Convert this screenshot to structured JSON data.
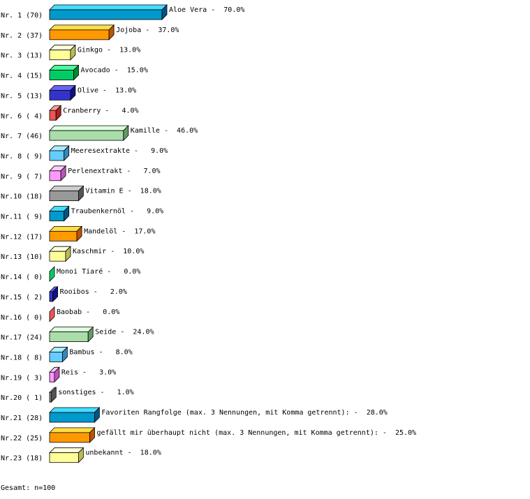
{
  "chart_data": {
    "type": "bar",
    "orientation": "horizontal",
    "style": "3d",
    "row_labels": [
      "Nr. 1 (70)",
      "Nr. 2 (37)",
      "Nr. 3 (13)",
      "Nr. 4 (15)",
      "Nr. 5 (13)",
      "Nr. 6 ( 4)",
      "Nr. 7 (46)",
      "Nr. 8 ( 9)",
      "Nr. 9 ( 7)",
      "Nr.10 (18)",
      "Nr.11 ( 9)",
      "Nr.12 (17)",
      "Nr.13 (10)",
      "Nr.14 ( 0)",
      "Nr.15 ( 2)",
      "Nr.16 ( 0)",
      "Nr.17 (24)",
      "Nr.18 ( 8)",
      "Nr.19 ( 3)",
      "Nr.20 ( 1)",
      "Nr.21 (28)",
      "Nr.22 (25)",
      "Nr.23 (18)"
    ],
    "categories": [
      "Aloe Vera",
      "Jojoba",
      "Ginkgo",
      "Avocado",
      "Olive",
      "Cranberry",
      "Kamille",
      "Meeresextrakte",
      "Perlenextrakt",
      "Vitamin E",
      "Traubenkernöl",
      "Mandelöl",
      "Kaschmir",
      "Monoi Tiaré",
      "Rooibos",
      "Baobab",
      "Seide",
      "Bambus",
      "Reis",
      "sonstiges",
      "Favoriten Rangfolge (max. 3 Nennungen, mit Komma getrennt):",
      "gefällt mir überhaupt nicht (max. 3 Nennungen, mit Komma getrennt):",
      "unbekannt"
    ],
    "values": [
      70,
      37,
      13,
      15,
      13,
      4,
      46,
      9,
      7,
      18,
      9,
      17,
      10,
      0,
      2,
      0,
      24,
      8,
      3,
      1,
      28,
      25,
      18
    ],
    "value_labels": [
      "70.0%",
      "37.0%",
      "13.0%",
      "15.0%",
      "13.0%",
      "4.0%",
      "46.0%",
      "9.0%",
      "7.0%",
      "18.0%",
      "9.0%",
      "17.0%",
      "10.0%",
      "0.0%",
      "2.0%",
      "0.0%",
      "24.0%",
      "8.0%",
      "3.0%",
      "1.0%",
      "28.0%",
      "25.0%",
      "18.0%"
    ],
    "xlim": [
      0,
      100
    ],
    "grid": false,
    "palette": [
      {
        "front": "#0099cc",
        "top": "#44ddff",
        "side": "#005588"
      },
      {
        "front": "#ff9900",
        "top": "#ffdd44",
        "side": "#bb5500"
      },
      {
        "front": "#ffff99",
        "top": "#ffffdd",
        "side": "#bbbb55"
      },
      {
        "front": "#00cc66",
        "top": "#44ff99",
        "side": "#008833"
      },
      {
        "front": "#3333cc",
        "top": "#6666ee",
        "side": "#111188"
      },
      {
        "front": "#ee5555",
        "top": "#ff9999",
        "side": "#aa2222"
      },
      {
        "front": "#aaddaa",
        "top": "#ddffdd",
        "side": "#669966"
      },
      {
        "front": "#66ccff",
        "top": "#aaeeff",
        "side": "#3388bb"
      },
      {
        "front": "#ff99ff",
        "top": "#ffccff",
        "side": "#bb55bb"
      },
      {
        "front": "#999999",
        "top": "#cccccc",
        "side": "#555555"
      }
    ],
    "footer": "Gesamt: n=100"
  }
}
